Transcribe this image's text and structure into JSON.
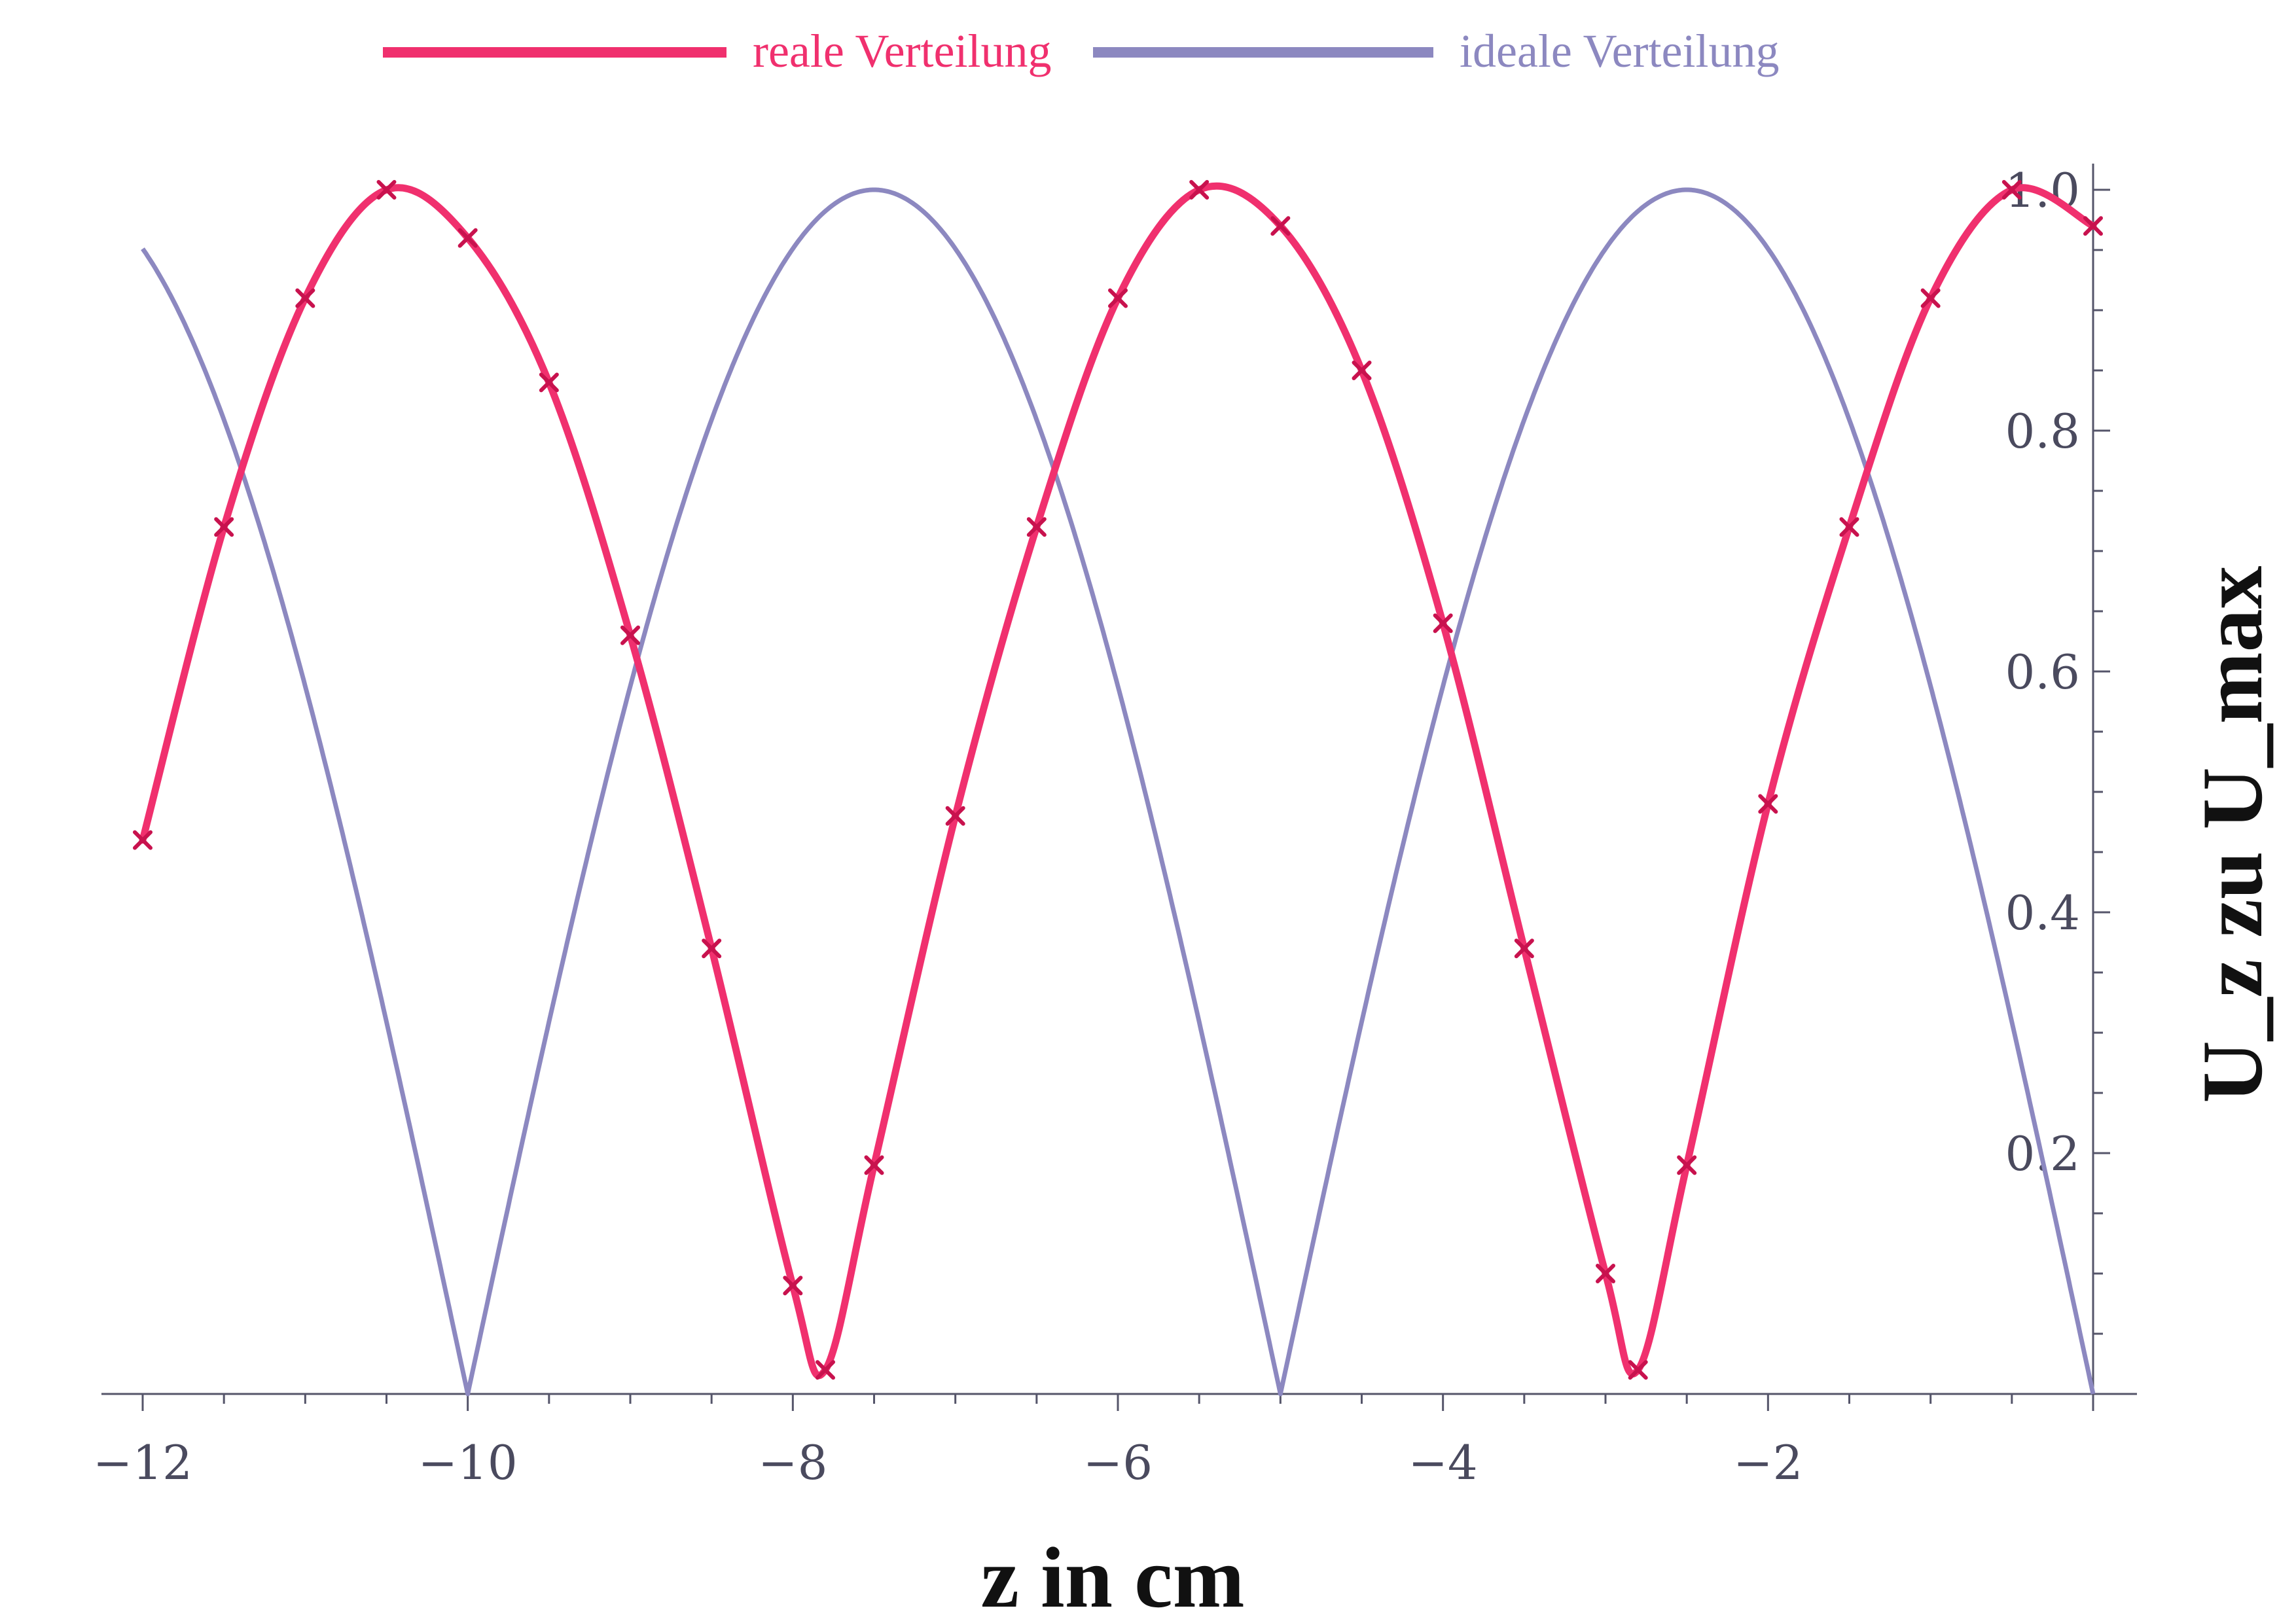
{
  "chart_data": {
    "type": "line",
    "title": "",
    "xlabel": "z in cm",
    "ylabel": "U_z zu U_max",
    "xlim": [
      -12,
      0
    ],
    "ylim": [
      0,
      1.0
    ],
    "x_ticks": [
      -12,
      -10,
      -8,
      -6,
      -4,
      -2
    ],
    "x_tick_labels": [
      "−12",
      "−10",
      "−8",
      "−6",
      "−4",
      "−2"
    ],
    "y_ticks": [
      0.2,
      0.4,
      0.6,
      0.8,
      1.0
    ],
    "y_tick_labels": [
      "0.2",
      "0.4",
      "0.6",
      "0.8",
      "1.0"
    ],
    "y_axis_position": "right",
    "grid": false,
    "legend_position": "top-center",
    "series": [
      {
        "name": "reale Verteilung",
        "color": "#f0306e",
        "marker": "x",
        "x": [
          -12.0,
          -11.5,
          -11.0,
          -10.5,
          -10.0,
          -9.5,
          -9.0,
          -8.5,
          -8.0,
          -7.8,
          -7.5,
          -7.0,
          -6.5,
          -6.0,
          -5.5,
          -5.0,
          -4.5,
          -4.0,
          -3.5,
          -3.0,
          -2.8,
          -2.5,
          -2.0,
          -1.5,
          -1.0,
          -0.5,
          0.0
        ],
        "y": [
          0.46,
          0.72,
          0.91,
          1.0,
          0.96,
          0.84,
          0.63,
          0.37,
          0.09,
          0.02,
          0.19,
          0.48,
          0.72,
          0.91,
          1.0,
          0.97,
          0.85,
          0.64,
          0.37,
          0.1,
          0.02,
          0.19,
          0.49,
          0.72,
          0.91,
          1.0,
          0.97
        ]
      },
      {
        "name": "ideale Verteilung",
        "color": "#8c88c0",
        "marker": "none",
        "function": "abs(cos(pi*(z+7.5)/5))",
        "x_range": [
          -12,
          0
        ]
      }
    ]
  }
}
